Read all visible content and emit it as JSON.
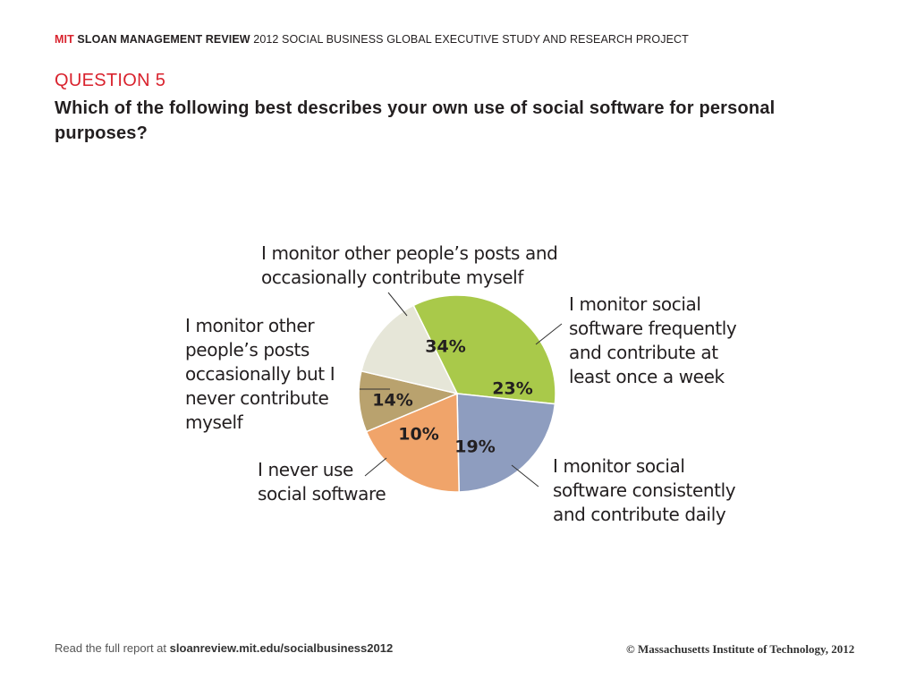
{
  "header": {
    "brand": "MIT",
    "publication": "SLOAN MANAGEMENT REVIEW",
    "subtitle": "2012 SOCIAL BUSINESS GLOBAL EXECUTIVE STUDY AND RESEARCH PROJECT"
  },
  "question": {
    "number": "QUESTION 5",
    "text": "Which of the following best describes your own use of social software for personal purposes?"
  },
  "callouts": {
    "occasional_contribute": [
      "I monitor other people’s posts and",
      "occasionally contribute myself"
    ],
    "weekly": [
      "I monitor social",
      "software frequently",
      "and contribute at",
      "least once a week"
    ],
    "daily": [
      "I monitor social",
      "software consistently",
      "and contribute daily"
    ],
    "never_use": [
      "I never use",
      "social software"
    ],
    "never_contribute": [
      "I monitor other",
      "people’s posts",
      "occasionally but I",
      "never contribute",
      "myself"
    ]
  },
  "chart_data": {
    "type": "pie",
    "slices": [
      {
        "label": "I monitor other people’s posts and occasionally contribute myself",
        "value": 34,
        "value_label": "34%",
        "color": "#a9c94a"
      },
      {
        "label": "I monitor social software frequently and contribute at least once a week",
        "value": 23,
        "value_label": "23%",
        "color": "#8e9dbf"
      },
      {
        "label": "I monitor social software consistently and contribute daily",
        "value": 19,
        "value_label": "19%",
        "color": "#f0a46a"
      },
      {
        "label": "I never use social software",
        "value": 10,
        "value_label": "10%",
        "color": "#b9a26e"
      },
      {
        "label": "I monitor other people’s posts occasionally but I never contribute myself",
        "value": 14,
        "value_label": "14%",
        "color": "#e6e6d8"
      }
    ]
  },
  "footer": {
    "read_prefix": "Read the full report at",
    "url": "sloanreview.mit.edu/socialbusiness2012",
    "copyright": "© Massachusetts Institute of Technology, 2012"
  }
}
